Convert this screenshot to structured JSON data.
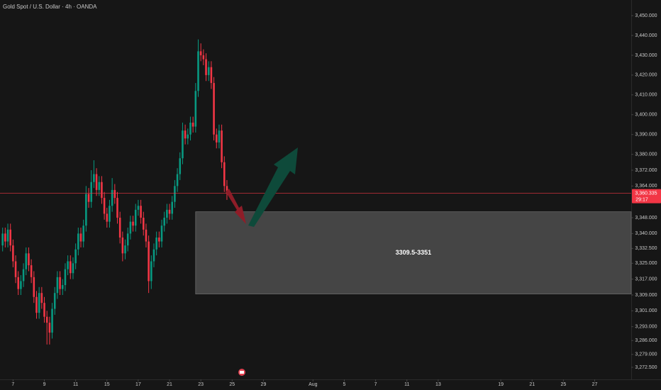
{
  "chart_data": {
    "type": "candlestick",
    "title": "Gold Spot / U.S. Dollar · 4h · OANDA",
    "up_color": "#089981",
    "down_color": "#f23645",
    "grid": false,
    "xlim": [
      -5,
      237
    ],
    "ylim": [
      3266.4,
      3457.9
    ],
    "xticks": [
      {
        "value": 0,
        "label": "7"
      },
      {
        "value": 12,
        "label": "9"
      },
      {
        "value": 24,
        "label": "11"
      },
      {
        "value": 36,
        "label": "15"
      },
      {
        "value": 48,
        "label": "17"
      },
      {
        "value": 60,
        "label": "21"
      },
      {
        "value": 72,
        "label": "23"
      },
      {
        "value": 84,
        "label": "25"
      },
      {
        "value": 96,
        "label": "29"
      },
      {
        "value": 115,
        "label": "Aug"
      },
      {
        "value": 127,
        "label": "5"
      },
      {
        "value": 139,
        "label": "7"
      },
      {
        "value": 151,
        "label": "11"
      },
      {
        "value": 163,
        "label": "13"
      },
      {
        "value": 187,
        "label": "19"
      },
      {
        "value": 199,
        "label": "21"
      },
      {
        "value": 211,
        "label": "25"
      },
      {
        "value": 223,
        "label": "27"
      }
    ],
    "yticks": [
      {
        "value": 3450,
        "label": "3,450.000"
      },
      {
        "value": 3440,
        "label": "3,440.000"
      },
      {
        "value": 3430,
        "label": "3,430.000"
      },
      {
        "value": 3420,
        "label": "3,420.000"
      },
      {
        "value": 3410,
        "label": "3,410.000"
      },
      {
        "value": 3400,
        "label": "3,400.000"
      },
      {
        "value": 3390,
        "label": "3,390.000"
      },
      {
        "value": 3380,
        "label": "3,380.000"
      },
      {
        "value": 3372,
        "label": "3,372.000"
      },
      {
        "value": 3364,
        "label": "3,364.000"
      },
      {
        "value": 3348,
        "label": "3,348.000"
      },
      {
        "value": 3340,
        "label": "3,340.000"
      },
      {
        "value": 3332.5,
        "label": "3,332.500"
      },
      {
        "value": 3325,
        "label": "3,325.000"
      },
      {
        "value": 3317,
        "label": "3,317.000"
      },
      {
        "value": 3309,
        "label": "3,309.000"
      },
      {
        "value": 3301,
        "label": "3,301.000"
      },
      {
        "value": 3293,
        "label": "3,293.000"
      },
      {
        "value": 3286,
        "label": "3,286.000"
      },
      {
        "value": 3279,
        "label": "3,279.000"
      },
      {
        "value": 3272.5,
        "label": "3,272.500"
      }
    ],
    "x": [
      -4,
      -3,
      -2,
      -1,
      0,
      1,
      2,
      3,
      4,
      5,
      6,
      7,
      8,
      9,
      10,
      11,
      12,
      13,
      14,
      15,
      16,
      17,
      18,
      19,
      20,
      21,
      22,
      23,
      24,
      25,
      26,
      27,
      28,
      29,
      30,
      31,
      32,
      33,
      34,
      35,
      36,
      37,
      38,
      39,
      40,
      41,
      42,
      43,
      44,
      45,
      46,
      47,
      48,
      49,
      50,
      51,
      52,
      53,
      54,
      55,
      56,
      57,
      58,
      59,
      60,
      61,
      62,
      63,
      64,
      65,
      66,
      67,
      68,
      69,
      70,
      71,
      72,
      73,
      74,
      75,
      76,
      77,
      78,
      79,
      80,
      81,
      82
    ],
    "open": [
      3334,
      3340,
      3336,
      3342,
      3334,
      3326,
      3318,
      3312,
      3316,
      3322,
      3330,
      3324,
      3318,
      3308,
      3300,
      3310,
      3305,
      3298,
      3295,
      3290,
      3302,
      3310,
      3318,
      3312,
      3314,
      3322,
      3326,
      3320,
      3325,
      3332,
      3340,
      3336,
      3344,
      3360,
      3356,
      3366,
      3370,
      3362,
      3366,
      3358,
      3350,
      3346,
      3354,
      3362,
      3358,
      3348,
      3338,
      3330,
      3334,
      3340,
      3346,
      3344,
      3352,
      3354,
      3348,
      3342,
      3336,
      3316,
      3326,
      3332,
      3338,
      3336,
      3344,
      3348,
      3352,
      3350,
      3356,
      3364,
      3370,
      3378,
      3392,
      3388,
      3390,
      3396,
      3394,
      3412,
      3432,
      3430,
      3428,
      3420,
      3424,
      3416,
      3390,
      3386,
      3392,
      3376,
      3364
    ],
    "high": [
      3343,
      3343,
      3345,
      3345,
      3337,
      3329,
      3321,
      3319,
      3325,
      3333,
      3333,
      3327,
      3321,
      3311,
      3313,
      3313,
      3308,
      3301,
      3298,
      3305,
      3313,
      3321,
      3321,
      3317,
      3325,
      3329,
      3329,
      3328,
      3335,
      3343,
      3343,
      3347,
      3364,
      3363,
      3372,
      3377,
      3373,
      3369,
      3369,
      3361,
      3353,
      3357,
      3368,
      3365,
      3361,
      3351,
      3341,
      3337,
      3343,
      3349,
      3349,
      3355,
      3357,
      3357,
      3351,
      3345,
      3339,
      3329,
      3335,
      3341,
      3341,
      3347,
      3351,
      3355,
      3355,
      3359,
      3367,
      3373,
      3381,
      3396,
      3395,
      3393,
      3399,
      3399,
      3416,
      3438,
      3436,
      3433,
      3431,
      3427,
      3427,
      3419,
      3393,
      3395,
      3395,
      3379,
      3367
    ],
    "low": [
      3331,
      3333,
      3333,
      3331,
      3323,
      3315,
      3309,
      3309,
      3313,
      3319,
      3321,
      3315,
      3305,
      3297,
      3297,
      3302,
      3295,
      3284,
      3284,
      3287,
      3299,
      3307,
      3309,
      3309,
      3311,
      3319,
      3317,
      3317,
      3322,
      3329,
      3333,
      3333,
      3341,
      3353,
      3353,
      3363,
      3359,
      3359,
      3355,
      3347,
      3343,
      3343,
      3351,
      3355,
      3345,
      3335,
      3326,
      3327,
      3331,
      3337,
      3341,
      3341,
      3349,
      3345,
      3339,
      3333,
      3310,
      3312,
      3323,
      3329,
      3333,
      3333,
      3341,
      3345,
      3347,
      3347,
      3353,
      3361,
      3367,
      3375,
      3385,
      3385,
      3387,
      3391,
      3391,
      3409,
      3427,
      3425,
      3417,
      3417,
      3413,
      3387,
      3383,
      3383,
      3373,
      3361,
      3357
    ],
    "close": [
      3340,
      3336,
      3342,
      3334,
      3326,
      3318,
      3312,
      3316,
      3322,
      3330,
      3324,
      3318,
      3308,
      3300,
      3310,
      3305,
      3298,
      3295,
      3290,
      3302,
      3310,
      3318,
      3312,
      3314,
      3322,
      3326,
      3320,
      3325,
      3332,
      3340,
      3336,
      3344,
      3360,
      3356,
      3366,
      3370,
      3362,
      3366,
      3358,
      3350,
      3346,
      3354,
      3362,
      3358,
      3348,
      3338,
      3330,
      3334,
      3340,
      3346,
      3344,
      3352,
      3354,
      3348,
      3342,
      3336,
      3316,
      3326,
      3332,
      3338,
      3336,
      3344,
      3348,
      3352,
      3350,
      3356,
      3364,
      3370,
      3378,
      3392,
      3388,
      3390,
      3396,
      3394,
      3412,
      3432,
      3430,
      3428,
      3420,
      3424,
      3416,
      3390,
      3386,
      3392,
      3376,
      3364,
      3360.335
    ],
    "last_price": {
      "value": 3360.335,
      "label": "3,360.335",
      "countdown": "29:17"
    },
    "zone": {
      "label": "3309.5-3351",
      "low": 3309.5,
      "high": 3351,
      "x_start": 70
    }
  }
}
